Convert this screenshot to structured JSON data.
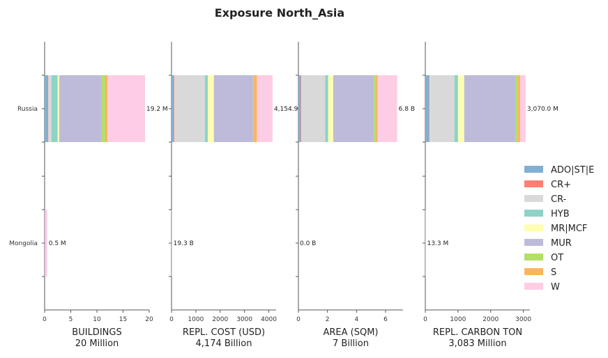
{
  "chart_data": {
    "type": "bar",
    "orientation": "horizontal",
    "stacked": true,
    "title": "Exposure North_Asia",
    "categories": [
      "Russia",
      "Mongolia"
    ],
    "legend": {
      "placement": "right",
      "entries": [
        {
          "name": "ADO|ST|E",
          "color": "#80b1d3"
        },
        {
          "name": "CR+",
          "color": "#fb8072"
        },
        {
          "name": "CR-",
          "color": "#d9d9d9"
        },
        {
          "name": "HYB",
          "color": "#8dd3c7"
        },
        {
          "name": "MR|MCF",
          "color": "#ffffb3"
        },
        {
          "name": "MUR",
          "color": "#bebada"
        },
        {
          "name": "OT",
          "color": "#b3de69"
        },
        {
          "name": "S",
          "color": "#fdb462"
        },
        {
          "name": "W",
          "color": "#fccde5"
        }
      ]
    },
    "panels": [
      {
        "xlabel": "BUILDINGS",
        "subtitle": "20 Million",
        "xlim": [
          0,
          20
        ],
        "ticks": [
          0,
          5,
          10,
          15,
          20
        ],
        "tick_labels": [
          "0",
          "5",
          "10",
          "15",
          "20"
        ],
        "totals": [
          "19.2 M",
          "0.5 M"
        ],
        "segments": {
          "Russia": [
            0.6,
            0.1,
            0.6,
            1.2,
            0.3,
            8.0,
            0.8,
            0.4,
            7.2
          ],
          "Mongolia": [
            0.05,
            0.0,
            0.0,
            0.0,
            0.0,
            0.0,
            0.0,
            0.0,
            0.45
          ]
        }
      },
      {
        "xlabel": "REPL. COST (USD)",
        "subtitle": "4,174 Billion",
        "xlim": [
          0,
          4300
        ],
        "ticks": [
          0,
          1000,
          2000,
          3000,
          4000
        ],
        "tick_labels": [
          "0",
          "1000",
          "2000",
          "3000",
          "4000"
        ],
        "totals": [
          "4,154.9",
          "19.3 B"
        ],
        "segments": {
          "Russia": [
            90,
            30,
            1250,
            120,
            250,
            1610,
            30,
            130,
            645
          ],
          "Mongolia": [
            2,
            0,
            5,
            0,
            0,
            5,
            0,
            0,
            7.3
          ]
        }
      },
      {
        "xlabel": "AREA (SQM)",
        "subtitle": "7 Billion",
        "xlim": [
          0,
          7.2
        ],
        "ticks": [
          0,
          2,
          4,
          6
        ],
        "tick_labels": [
          "0",
          "2",
          "4",
          "6"
        ],
        "totals": [
          "6.8 B",
          "0.0 B"
        ],
        "segments": {
          "Russia": [
            0.15,
            0.05,
            1.65,
            0.2,
            0.35,
            2.8,
            0.15,
            0.1,
            1.35
          ],
          "Mongolia": [
            0.0,
            0.0,
            0.0,
            0.0,
            0.0,
            0.0,
            0.0,
            0.0,
            0.0
          ]
        }
      },
      {
        "xlabel": "REPL. CARBON TON",
        "subtitle": "3,083 Million",
        "xlim": [
          0,
          3200
        ],
        "ticks": [
          0,
          1000,
          2000,
          3000
        ],
        "tick_labels": [
          "0",
          "1000",
          "2000",
          "3000"
        ],
        "totals": [
          "3,070.0 M",
          "13.3 M"
        ],
        "segments": {
          "Russia": [
            110,
            20,
            760,
            110,
            190,
            1560,
            80,
            70,
            170
          ],
          "Mongolia": [
            2,
            0,
            4,
            0,
            0,
            3,
            0,
            0,
            4.3
          ]
        }
      }
    ]
  }
}
